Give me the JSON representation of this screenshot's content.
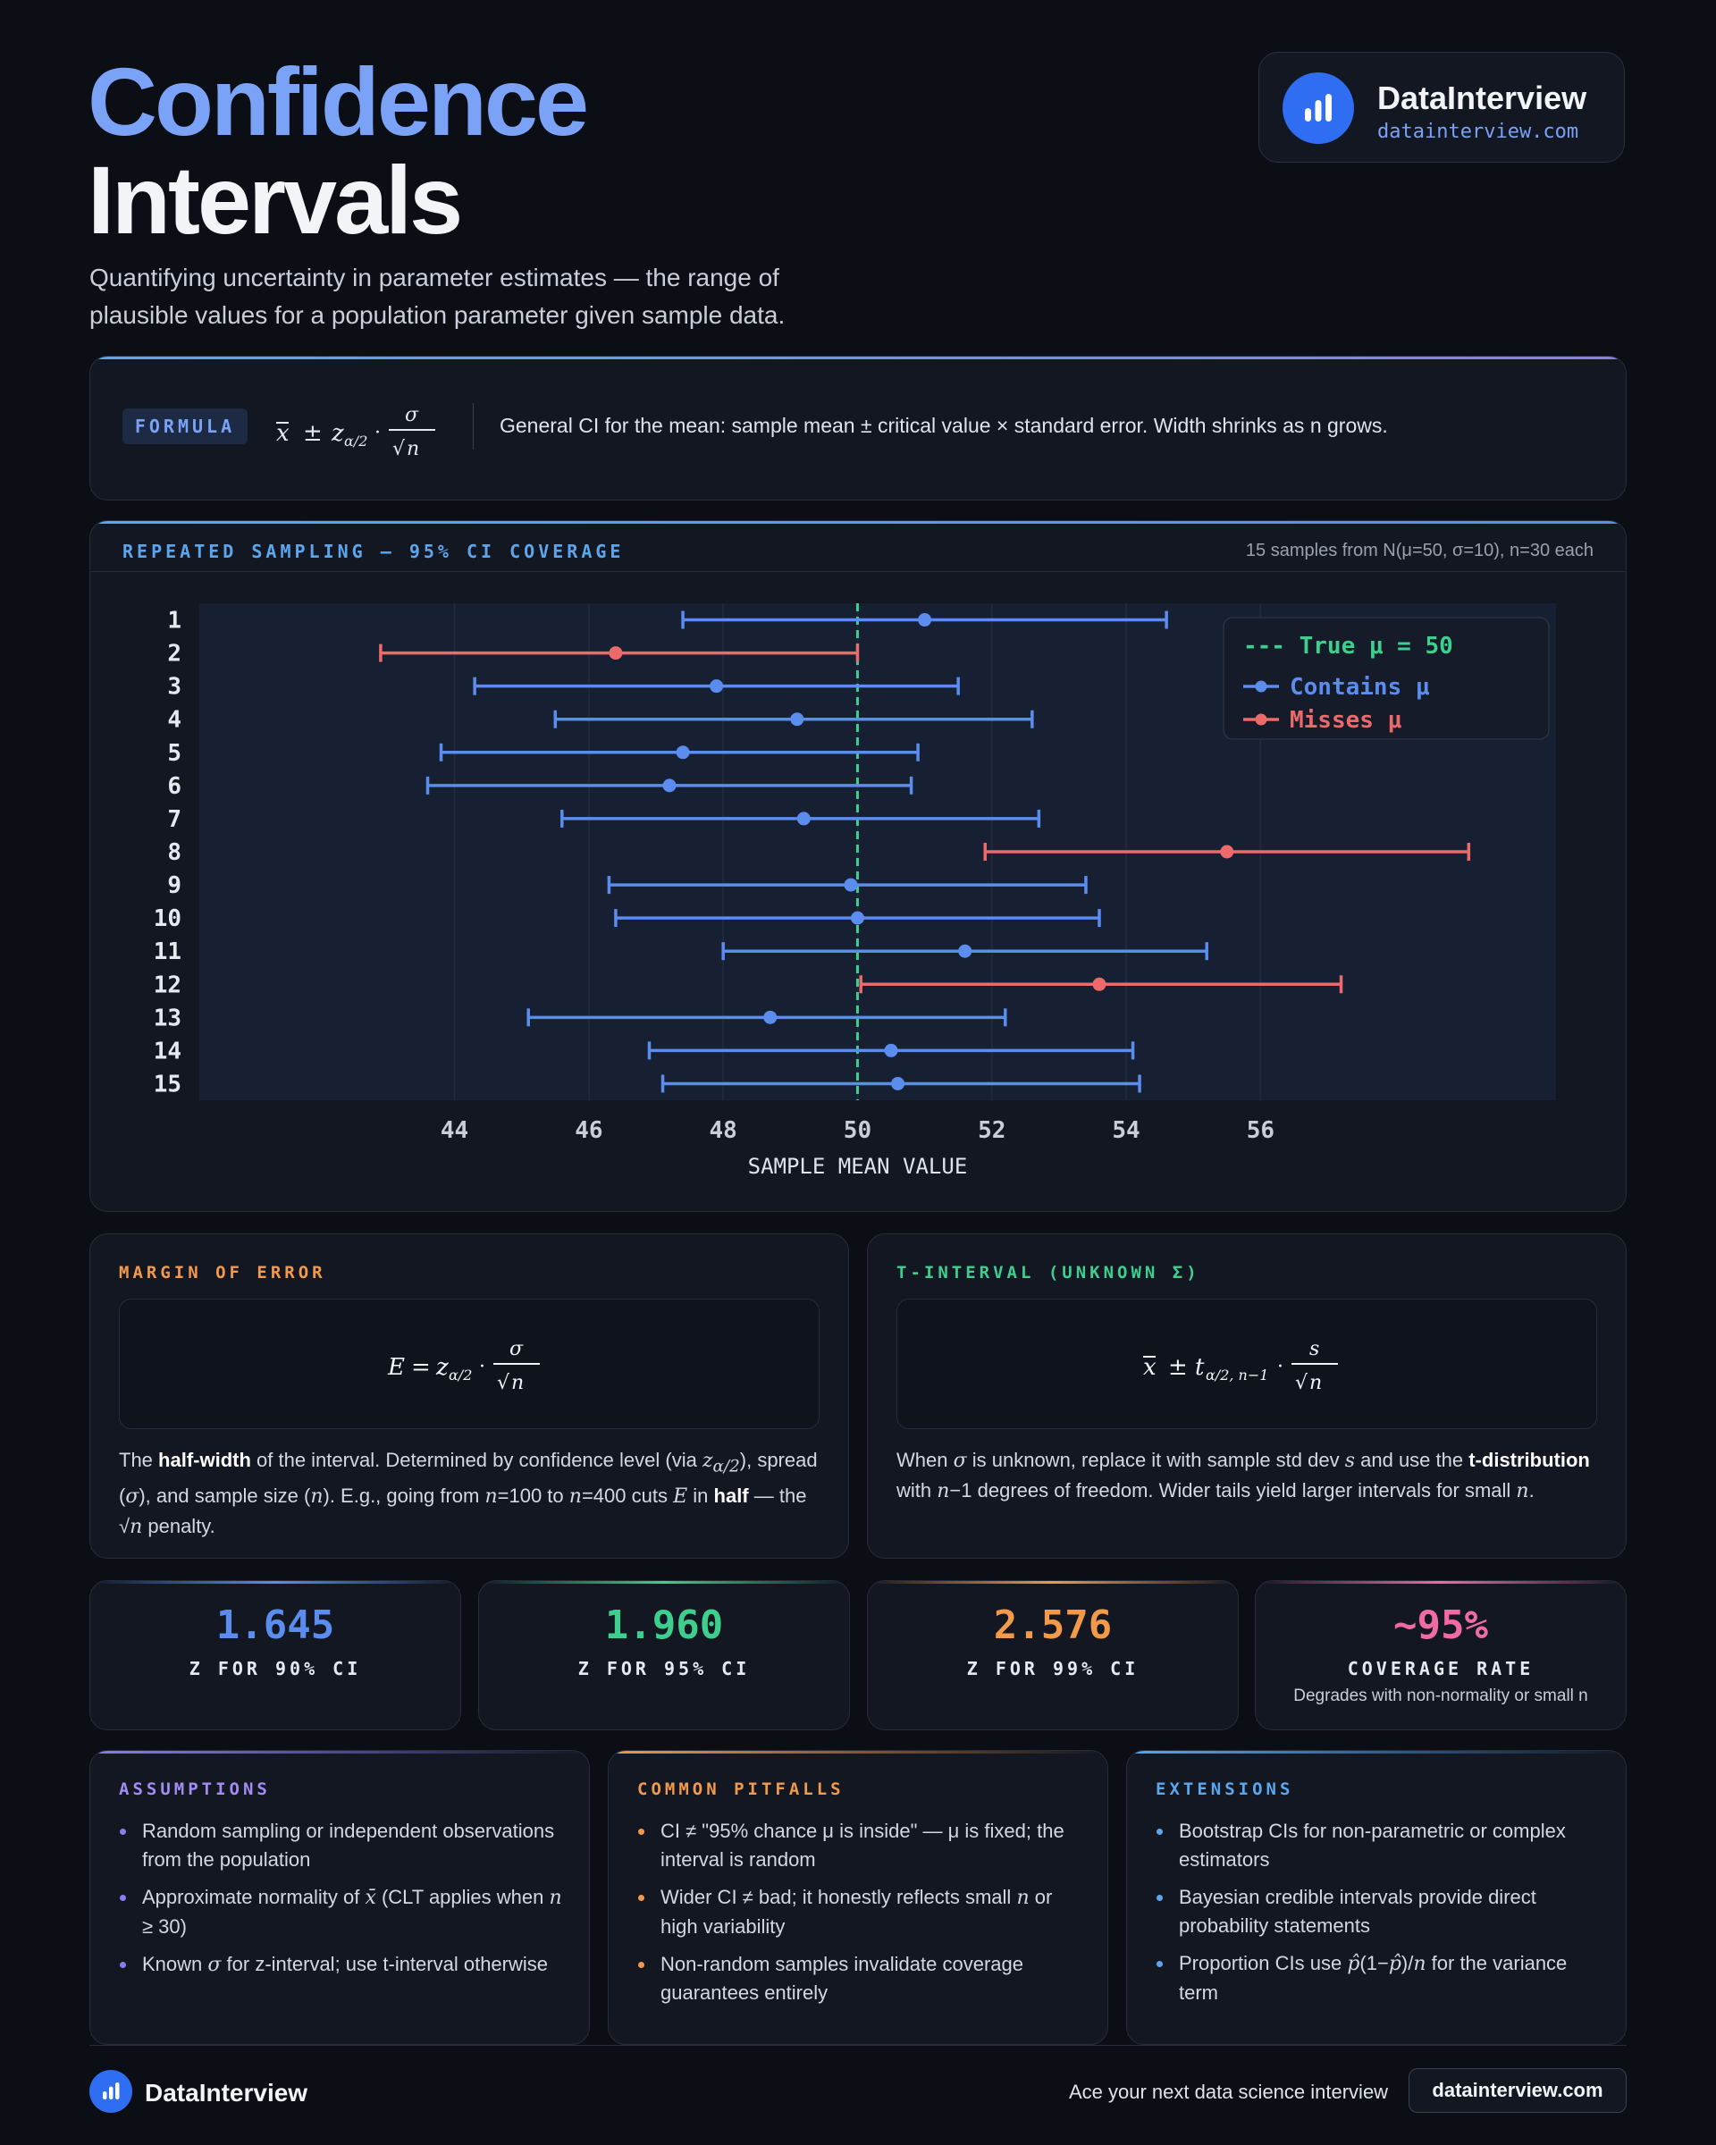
{
  "header": {
    "title_line1": "Confidence",
    "title_line2": "Intervals",
    "subtitle": "Quantifying uncertainty in parameter estimates — the range of plausible values for a population parameter given sample data."
  },
  "brand": {
    "name": "DataInterview",
    "url": "datainterview.com"
  },
  "formula": {
    "tag": "FORMULA",
    "description": "General CI for the mean: sample mean ± critical value × standard error. Width shrinks as n grows."
  },
  "chart_panel": {
    "title": "REPEATED SAMPLING — 95% CI COVERAGE",
    "note": "15 samples from N(μ=50, σ=10), n=30 each"
  },
  "chart_data": {
    "type": "errorbar",
    "xlabel": "SAMPLE MEAN VALUE",
    "xlim": [
      40.2,
      60.4
    ],
    "xticks": [
      44,
      46,
      48,
      50,
      52,
      54,
      56
    ],
    "true_mean": 50,
    "legend": [
      "--- True μ = 50",
      "Contains μ",
      "Misses μ"
    ],
    "legend_position": "top-right",
    "colors": {
      "contains": "#5b8def",
      "misses": "#ec6a6a",
      "truth": "#3ecf8e"
    },
    "samples": [
      {
        "id": "1",
        "mean": 51.0,
        "lo": 47.4,
        "hi": 54.6,
        "contains": true
      },
      {
        "id": "2",
        "mean": 46.4,
        "lo": 42.9,
        "hi": 50.0,
        "contains": false
      },
      {
        "id": "3",
        "mean": 47.9,
        "lo": 44.3,
        "hi": 51.5,
        "contains": true
      },
      {
        "id": "4",
        "mean": 49.1,
        "lo": 45.5,
        "hi": 52.6,
        "contains": true
      },
      {
        "id": "5",
        "mean": 47.4,
        "lo": 43.8,
        "hi": 50.9,
        "contains": true
      },
      {
        "id": "6",
        "mean": 47.2,
        "lo": 43.6,
        "hi": 50.8,
        "contains": true
      },
      {
        "id": "7",
        "mean": 49.2,
        "lo": 45.6,
        "hi": 52.7,
        "contains": true
      },
      {
        "id": "8",
        "mean": 55.5,
        "lo": 51.9,
        "hi": 59.1,
        "contains": false
      },
      {
        "id": "9",
        "mean": 49.9,
        "lo": 46.3,
        "hi": 53.4,
        "contains": true
      },
      {
        "id": "10",
        "mean": 50.0,
        "lo": 46.4,
        "hi": 53.6,
        "contains": true
      },
      {
        "id": "11",
        "mean": 51.6,
        "lo": 48.0,
        "hi": 55.2,
        "contains": true
      },
      {
        "id": "12",
        "mean": 53.6,
        "lo": 50.05,
        "hi": 57.2,
        "contains": false
      },
      {
        "id": "13",
        "mean": 48.7,
        "lo": 45.1,
        "hi": 52.2,
        "contains": true
      },
      {
        "id": "14",
        "mean": 50.5,
        "lo": 46.9,
        "hi": 54.1,
        "contains": true
      },
      {
        "id": "15",
        "mean": 50.6,
        "lo": 47.1,
        "hi": 54.2,
        "contains": true
      }
    ]
  },
  "margin_of_error": {
    "label": "MARGIN OF ERROR",
    "text_html": "The <b>half-width</b> of the interval. Determined by confidence level (via <span class=\"serif\">z</span><sub class=\"serif\">α/2</sub>), spread (<span class=\"serif\">σ</span>), and sample size (<span class=\"serif\">n</span>). E.g., going from <span class=\"serif\">n</span>=100 to <span class=\"serif\">n</span>=400 cuts <span class=\"serif\">E</span> in <b>half</b> — the √<span class=\"serif\">n</span> penalty."
  },
  "t_interval": {
    "label": "T-INTERVAL (UNKNOWN Σ)",
    "text_html": "When <span class=\"serif\">σ</span> is unknown, replace it with sample std dev <span class=\"serif\">s</span> and use the <b>t-distribution</b> with <span class=\"serif\">n</span>−1 degrees of freedom. Wider tails yield larger intervals for small <span class=\"serif\">n</span>."
  },
  "stats": [
    {
      "value": "1.645",
      "label": "Z FOR 90% CI",
      "sub": "",
      "color": "#5b8def"
    },
    {
      "value": "1.960",
      "label": "Z FOR 95% CI",
      "sub": "",
      "color": "#3ecf8e"
    },
    {
      "value": "2.576",
      "label": "Z FOR 99% CI",
      "sub": "",
      "color": "#f2994a"
    },
    {
      "value": "~95%",
      "label": "COVERAGE RATE",
      "sub": "Degrades with non-normality or small n",
      "color": "#f06aa6"
    }
  ],
  "cards": {
    "assumptions": {
      "label": "ASSUMPTIONS",
      "items": [
        "Random sampling or independent observations from the population",
        "Approximate normality of <span class=\"serif\">x̄</span> (CLT applies when <span class=\"serif\">n</span> ≥ 30)",
        "Known <span class=\"serif\">σ</span> for z-interval; use t-interval otherwise"
      ]
    },
    "pitfalls": {
      "label": "COMMON PITFALLS",
      "items": [
        "CI ≠ \"95% chance μ is inside\" — μ is fixed; the interval is random",
        "Wider CI ≠ bad; it honestly reflects small <span class=\"serif\">n</span> or high variability",
        "Non-random samples invalidate coverage guarantees entirely"
      ]
    },
    "extensions": {
      "label": "EXTENSIONS",
      "items": [
        "Bootstrap CIs for non-parametric or complex estimators",
        "Bayesian credible intervals provide direct probability statements",
        "Proportion CIs use <span class=\"serif\">p̂</span>(1−<span class=\"serif\">p̂</span>)/<span class=\"serif\">n</span> for the variance term"
      ]
    }
  },
  "footer": {
    "name": "DataInterview",
    "tagline": "Ace your next data science interview",
    "button": "datainterview.com"
  }
}
